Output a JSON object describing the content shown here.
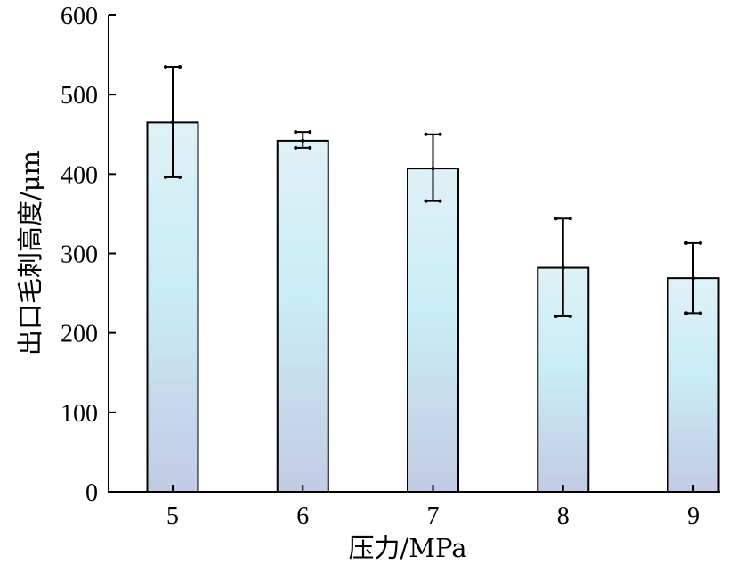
{
  "chart_data": {
    "type": "bar",
    "title": "",
    "xlabel": "压力/MPa",
    "ylabel": "出口毛刺高度/μm",
    "categories": [
      "5",
      "6",
      "7",
      "8",
      "9"
    ],
    "values": [
      465,
      442,
      407,
      282,
      269
    ],
    "error_upper": [
      535,
      453,
      450,
      344,
      313
    ],
    "error_lower": [
      396,
      433,
      366,
      221,
      225
    ],
    "ylim": [
      0,
      600
    ],
    "yticks": [
      "0",
      "100",
      "200",
      "300",
      "400",
      "500",
      "600"
    ],
    "grid": false,
    "legend": "none",
    "colors": {
      "bar_top": "#dff1f6",
      "bar_mid": "#c9ecf6",
      "bar_bottom": "#c2cbe3",
      "outline": "#000000"
    }
  }
}
